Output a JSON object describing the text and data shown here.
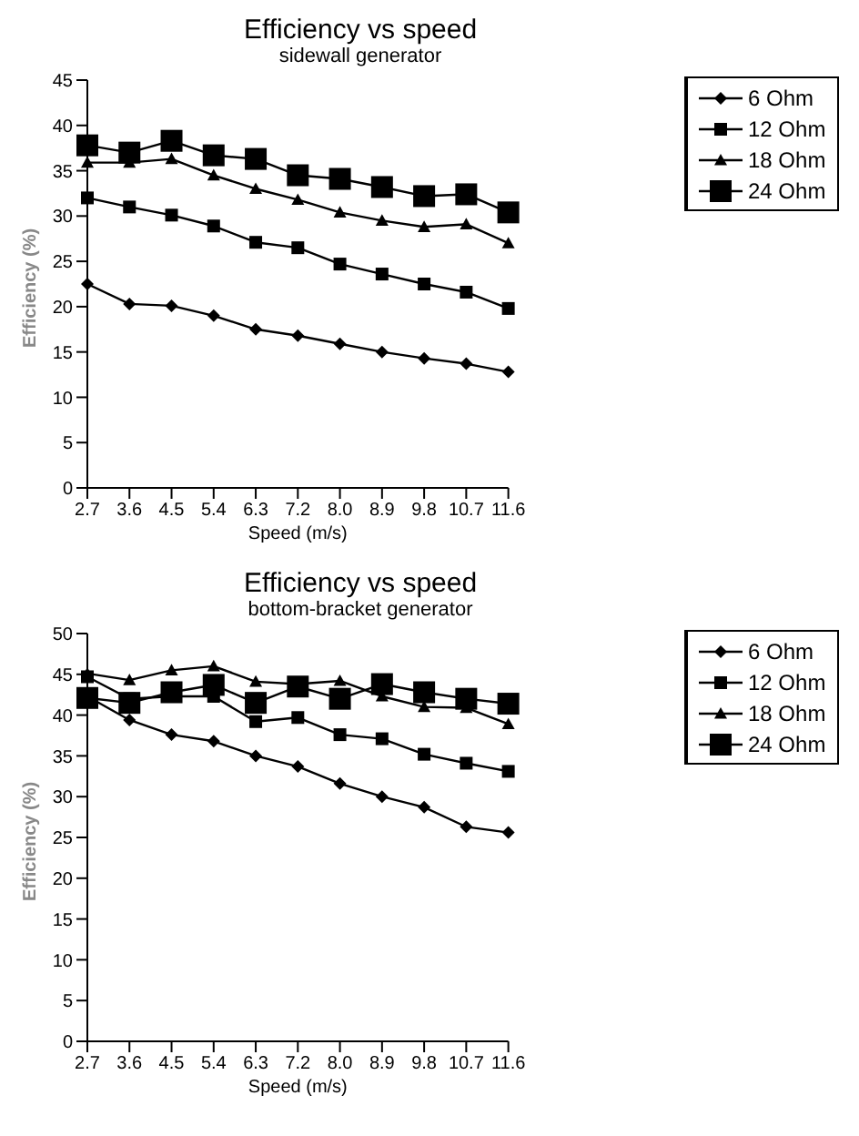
{
  "chart_data": [
    {
      "type": "line",
      "title": "Efficiency vs speed",
      "subtitle": "sidewall generator",
      "xlabel": "Speed (m/s)",
      "ylabel": "Efficiency (%)",
      "categories": [
        "2.7",
        "3.6",
        "4.5",
        "5.4",
        "6.3",
        "7.2",
        "8.0",
        "8.9",
        "9.8",
        "10.7",
        "11.6"
      ],
      "ylim": [
        0,
        45
      ],
      "yticks": [
        0,
        5,
        10,
        15,
        20,
        25,
        30,
        35,
        40,
        45
      ],
      "legend": "right",
      "series": [
        {
          "name": "6 Ohm",
          "color": "#000000",
          "marker": "diamond",
          "values": [
            22.5,
            20.3,
            20.1,
            19.0,
            17.5,
            16.8,
            15.9,
            15.0,
            14.3,
            13.7,
            12.8
          ]
        },
        {
          "name": "12 Ohm",
          "color": "#000000",
          "marker": "square",
          "values": [
            32.0,
            31.0,
            30.1,
            28.9,
            27.1,
            26.5,
            24.7,
            23.6,
            22.5,
            21.6,
            19.8
          ]
        },
        {
          "name": "18 Ohm",
          "color": "#000000",
          "marker": "triangle",
          "values": [
            35.9,
            35.9,
            36.3,
            34.5,
            33.0,
            31.8,
            30.4,
            29.5,
            28.8,
            29.1,
            27.0
          ]
        },
        {
          "name": "24 Ohm",
          "color": "#000000",
          "marker": "square",
          "values": [
            37.8,
            37.0,
            38.3,
            36.7,
            36.3,
            34.5,
            34.1,
            33.2,
            32.2,
            32.4,
            30.4
          ]
        }
      ]
    },
    {
      "type": "line",
      "title": "Efficiency vs speed",
      "subtitle": "bottom-bracket generator",
      "xlabel": "Speed (m/s)",
      "ylabel": "Efficiency (%)",
      "categories": [
        "2.7",
        "3.6",
        "4.5",
        "5.4",
        "6.3",
        "7.2",
        "8.0",
        "8.9",
        "9.8",
        "10.7",
        "11.6"
      ],
      "ylim": [
        0,
        50
      ],
      "yticks": [
        0,
        5,
        10,
        15,
        20,
        25,
        30,
        35,
        40,
        45,
        50
      ],
      "legend": "right",
      "series": [
        {
          "name": "6 Ohm",
          "color": "#000000",
          "marker": "diamond",
          "values": [
            42.3,
            39.4,
            37.6,
            36.8,
            35.0,
            33.7,
            31.6,
            30.0,
            28.7,
            26.3,
            25.6
          ]
        },
        {
          "name": "12 Ohm",
          "color": "#000000",
          "marker": "square",
          "values": [
            44.7,
            42.0,
            42.3,
            42.3,
            39.2,
            39.7,
            37.6,
            37.1,
            35.2,
            34.1,
            33.1
          ]
        },
        {
          "name": "18 Ohm",
          "color": "#000000",
          "marker": "triangle",
          "values": [
            45.1,
            44.3,
            45.5,
            46.0,
            44.1,
            43.8,
            44.2,
            42.3,
            41.0,
            40.9,
            38.9
          ]
        },
        {
          "name": "24 Ohm",
          "color": "#000000",
          "marker": "square",
          "values": [
            42.1,
            41.5,
            42.8,
            43.7,
            41.5,
            43.5,
            42.0,
            43.8,
            42.8,
            42.0,
            41.4
          ]
        }
      ]
    }
  ]
}
